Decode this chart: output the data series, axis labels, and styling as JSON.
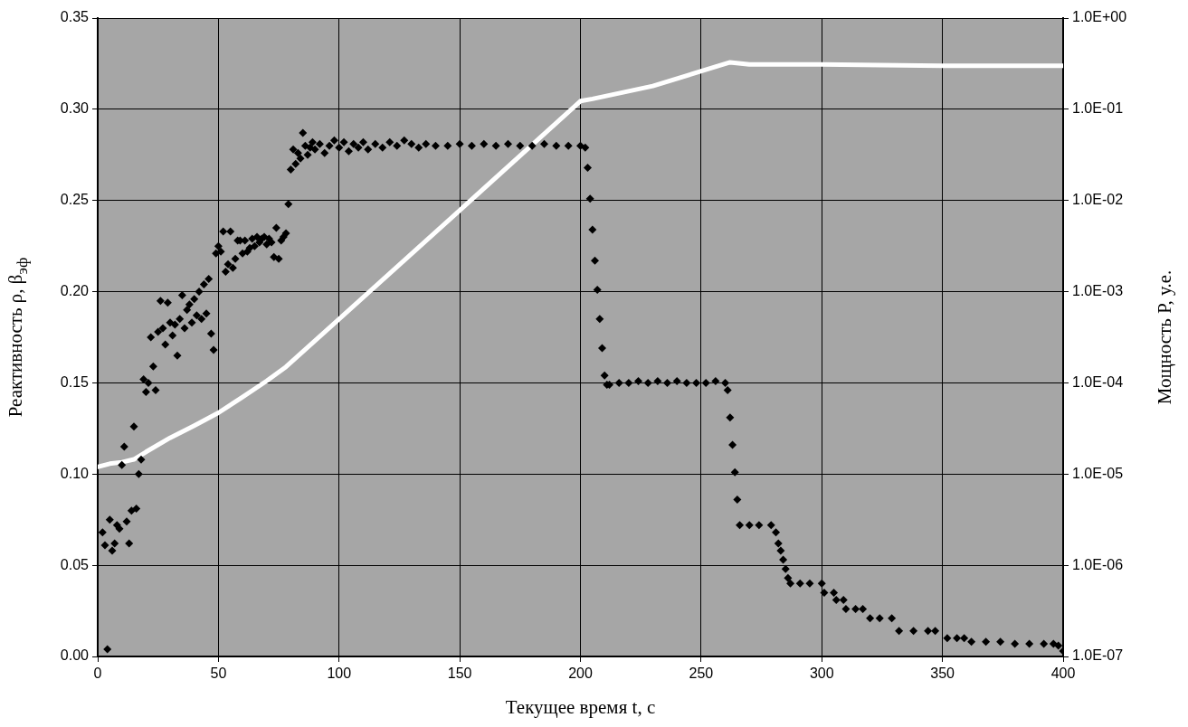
{
  "chart_data": {
    "type": "scatter",
    "xlabel": "Текущее время t, с",
    "ylabel": "Реактивность ρ, β$_{эф}$",
    "y2label": "Мощность P, у.е.",
    "xlim": [
      0,
      400
    ],
    "xticks": [
      0,
      50,
      100,
      150,
      200,
      250,
      300,
      350,
      400
    ],
    "ylim": [
      0,
      0.35
    ],
    "yticks": [
      {
        "value": 0,
        "label": "0.00"
      },
      {
        "value": 0.05,
        "label": "0.05"
      },
      {
        "value": 0.1,
        "label": "0.10"
      },
      {
        "value": 0.15,
        "label": "0.15"
      },
      {
        "value": 0.2,
        "label": "0.20"
      },
      {
        "value": 0.25,
        "label": "0.25"
      },
      {
        "value": 0.3,
        "label": "0.30"
      },
      {
        "value": 0.35,
        "label": "0.35"
      }
    ],
    "y2lim": [
      1e-07,
      1
    ],
    "y2ticks": [
      {
        "value": 1e-07,
        "label": "1.0E-07"
      },
      {
        "value": 1e-06,
        "label": "1.0E-06"
      },
      {
        "value": 1e-05,
        "label": "1.0E-05"
      },
      {
        "value": 0.0001,
        "label": "1.0E-04"
      },
      {
        "value": 0.001,
        "label": "1.0E-03"
      },
      {
        "value": 0.01,
        "label": "1.0E-02"
      },
      {
        "value": 0.1,
        "label": "1.0E-01"
      },
      {
        "value": 1,
        "label": "1.0E+00"
      }
    ],
    "log": "y2",
    "grid": true,
    "legend": false,
    "series": [
      {
        "type": "scatter",
        "marker": "diamond",
        "color": "#000000",
        "x": [
          2,
          3,
          4,
          5,
          6,
          7,
          8,
          9,
          10,
          11,
          12,
          13,
          14,
          15,
          16,
          17,
          18,
          19,
          20,
          21,
          22,
          23,
          24,
          25,
          26,
          27,
          28,
          29,
          30,
          31,
          32,
          33,
          34,
          35,
          36,
          37,
          38,
          39,
          40,
          41,
          42,
          43,
          44,
          45,
          46,
          47,
          48,
          49,
          50,
          51,
          52,
          53,
          54,
          55,
          56,
          57,
          58,
          59,
          60,
          61,
          62,
          63,
          64,
          65,
          66,
          67,
          68,
          69,
          70,
          71,
          72,
          73,
          74,
          75,
          76,
          77,
          78,
          79,
          80,
          81,
          82,
          83,
          84,
          85,
          86,
          87,
          88,
          89,
          90,
          92,
          94,
          96,
          98,
          100,
          102,
          104,
          106,
          108,
          110,
          112,
          115,
          118,
          121,
          124,
          127,
          130,
          133,
          136,
          140,
          145,
          150,
          155,
          160,
          165,
          170,
          175,
          180,
          185,
          190,
          195,
          200,
          202,
          203,
          204,
          205,
          206,
          207,
          208,
          209,
          210,
          211,
          212,
          216,
          220,
          224,
          228,
          232,
          236,
          240,
          244,
          248,
          252,
          256,
          260,
          261,
          262,
          263,
          264,
          265,
          266,
          270,
          274,
          279,
          281,
          282,
          283,
          284,
          285,
          286,
          287,
          291,
          295,
          300,
          301,
          305,
          306,
          309,
          310,
          314,
          317,
          320,
          324,
          329,
          332,
          338,
          344,
          347,
          352,
          356,
          359,
          362,
          368,
          374,
          380,
          386,
          392,
          396,
          398,
          400
        ],
        "values": [
          0.068,
          0.061,
          0.004,
          0.075,
          0.058,
          0.062,
          0.072,
          0.07,
          0.105,
          0.115,
          0.074,
          0.062,
          0.08,
          0.126,
          0.081,
          0.1,
          0.108,
          0.152,
          0.145,
          0.15,
          0.175,
          0.159,
          0.146,
          0.178,
          0.195,
          0.18,
          0.171,
          0.194,
          0.183,
          0.176,
          0.182,
          0.165,
          0.185,
          0.198,
          0.18,
          0.19,
          0.193,
          0.183,
          0.196,
          0.187,
          0.2,
          0.185,
          0.204,
          0.188,
          0.207,
          0.177,
          0.168,
          0.221,
          0.225,
          0.222,
          0.233,
          0.211,
          0.215,
          0.233,
          0.213,
          0.218,
          0.228,
          0.228,
          0.221,
          0.228,
          0.222,
          0.224,
          0.229,
          0.225,
          0.23,
          0.227,
          0.229,
          0.23,
          0.226,
          0.229,
          0.227,
          0.219,
          0.235,
          0.218,
          0.228,
          0.23,
          0.232,
          0.248,
          0.267,
          0.278,
          0.27,
          0.276,
          0.273,
          0.287,
          0.28,
          0.275,
          0.279,
          0.282,
          0.278,
          0.281,
          0.276,
          0.28,
          0.283,
          0.279,
          0.282,
          0.277,
          0.281,
          0.279,
          0.282,
          0.278,
          0.281,
          0.279,
          0.282,
          0.28,
          0.283,
          0.281,
          0.279,
          0.281,
          0.28,
          0.28,
          0.281,
          0.28,
          0.281,
          0.28,
          0.281,
          0.28,
          0.28,
          0.281,
          0.28,
          0.28,
          0.28,
          0.279,
          0.268,
          0.251,
          0.234,
          0.217,
          0.201,
          0.185,
          0.169,
          0.154,
          0.149,
          0.149,
          0.15,
          0.15,
          0.151,
          0.15,
          0.151,
          0.15,
          0.151,
          0.15,
          0.15,
          0.15,
          0.151,
          0.15,
          0.146,
          0.131,
          0.116,
          0.101,
          0.086,
          0.072,
          0.072,
          0.072,
          0.072,
          0.068,
          0.062,
          0.058,
          0.053,
          0.048,
          0.043,
          0.04,
          0.04,
          0.04,
          0.04,
          0.035,
          0.035,
          0.031,
          0.031,
          0.026,
          0.026,
          0.026,
          0.021,
          0.021,
          0.021,
          0.014,
          0.014,
          0.014,
          0.014,
          0.01,
          0.01,
          0.01,
          0.008,
          0.008,
          0.008,
          0.007,
          0.007,
          0.007,
          0.007,
          0.006,
          0.003
        ]
      },
      {
        "type": "line",
        "axis": "y2",
        "marker": "none",
        "color": "#ffffff",
        "x": [
          0,
          5,
          10,
          15,
          20,
          30,
          40,
          50,
          60,
          70,
          78,
          100,
          150,
          200,
          205,
          230,
          262,
          270,
          300,
          350,
          400
        ],
        "values": [
          1.2e-05,
          1.3e-05,
          1.35e-05,
          1.45e-05,
          1.75e-05,
          2.5e-05,
          3.4e-05,
          4.7e-05,
          7e-05,
          0.000105,
          0.00015,
          0.0005,
          0.0078,
          0.123,
          0.13,
          0.18,
          0.327,
          0.31,
          0.31,
          0.3,
          0.3
        ]
      }
    ]
  }
}
